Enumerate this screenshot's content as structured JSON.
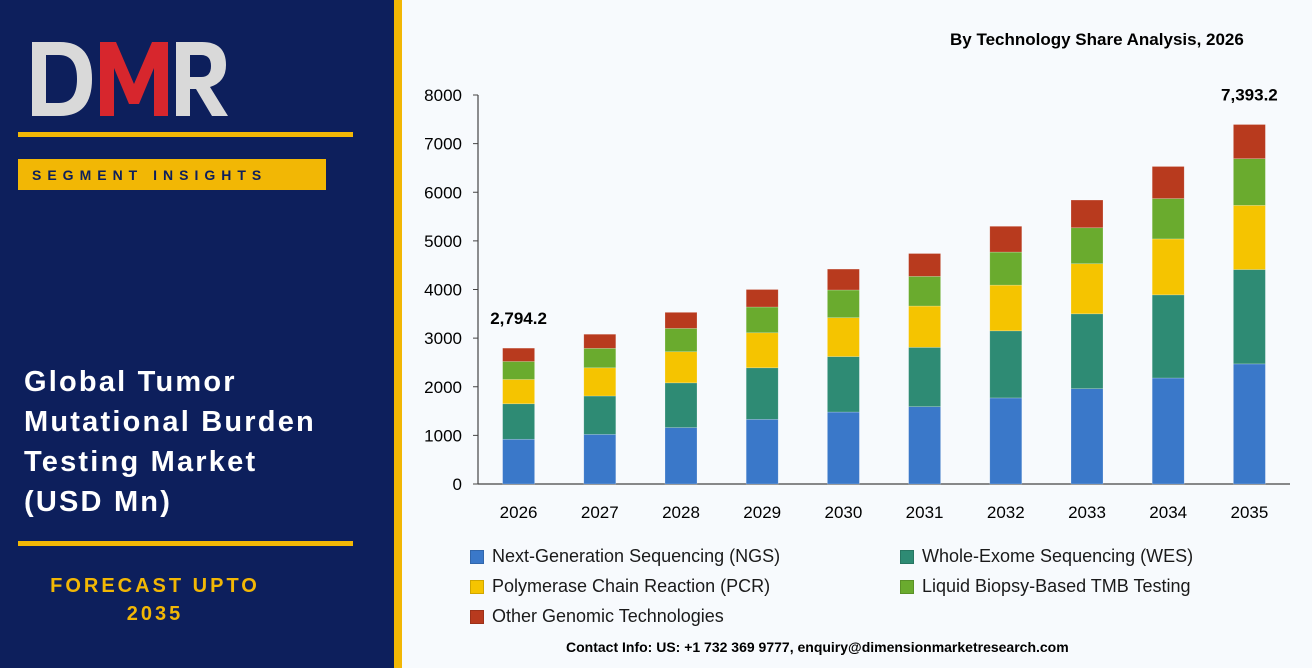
{
  "brand": {
    "logo_text": "DMR",
    "segment_label": "SEGMENT INSIGHTS"
  },
  "report": {
    "title_lines": [
      "Global Tumor",
      "Mutational Burden",
      "Testing Market",
      "(USD Mn)"
    ],
    "forecast_lines": [
      "FORECAST UPTO",
      "2035"
    ],
    "contact": "Contact Info: US: +1 732 369 9777, enquiry@dimensionmarketresearch.com"
  },
  "colors": {
    "navy": "#0d1f5c",
    "gold": "#f2b705",
    "logo_red": "#d7262d",
    "logo_gray": "#d9d9d9"
  },
  "chart_data": {
    "type": "bar",
    "stacked": true,
    "title": "By Technology Share Analysis, 2026",
    "categories": [
      "2026",
      "2027",
      "2028",
      "2029",
      "2030",
      "2031",
      "2032",
      "2033",
      "2034",
      "2035"
    ],
    "ylim": [
      0,
      8000
    ],
    "yticks": [
      0,
      1000,
      2000,
      3000,
      4000,
      5000,
      6000,
      7000,
      8000
    ],
    "legend_position": "bottom",
    "annotations": [
      {
        "category": "2026",
        "text": "2,794.2"
      },
      {
        "category": "2035",
        "text": "7,393.2"
      }
    ],
    "series": [
      {
        "name": "Next-Generation Sequencing (NGS)",
        "color": "#3a78c9",
        "values": [
          920,
          1020,
          1160,
          1330,
          1480,
          1590,
          1770,
          1960,
          2180,
          2470
        ]
      },
      {
        "name": "Whole-Exome Sequencing (WES)",
        "color": "#2e8b74",
        "values": [
          730,
          790,
          920,
          1060,
          1140,
          1220,
          1380,
          1540,
          1710,
          1940
        ]
      },
      {
        "name": "Polymerase Chain Reaction (PCR)",
        "color": "#f5c400",
        "values": [
          500,
          580,
          640,
          720,
          800,
          850,
          940,
          1030,
          1150,
          1320
        ]
      },
      {
        "name": "Liquid Biopsy-Based TMB Testing",
        "color": "#6aab2e",
        "values": [
          370,
          400,
          480,
          530,
          570,
          610,
          680,
          740,
          830,
          960
        ]
      },
      {
        "name": "Other Genomic Technologies",
        "color": "#b83a1e",
        "values": [
          274.2,
          290,
          330,
          360,
          430,
          470,
          530,
          570,
          660,
          703.2
        ]
      }
    ]
  }
}
